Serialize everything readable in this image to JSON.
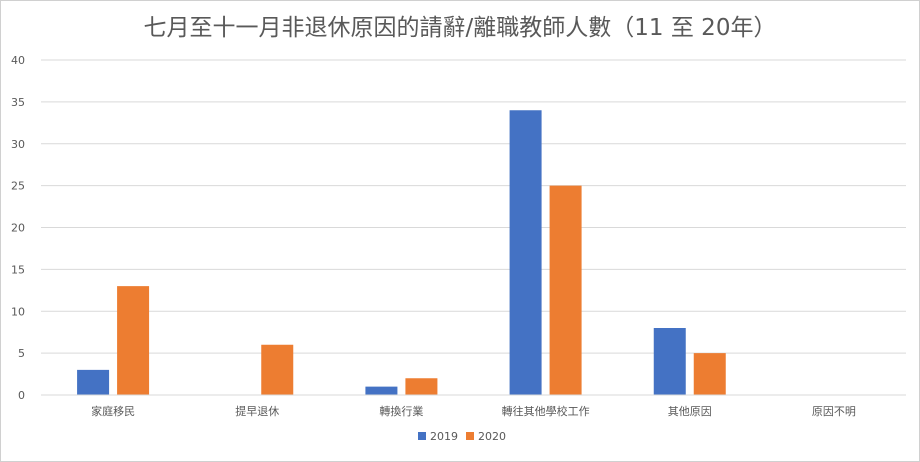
{
  "chart_data": {
    "type": "bar",
    "title": "七月至十一月非退休原因的請辭/離職教師人數（11 至 20年）",
    "xlabel": "",
    "ylabel": "",
    "ylim": [
      0,
      40
    ],
    "yticks": [
      "0",
      "5",
      "10",
      "15",
      "20",
      "25",
      "30",
      "35",
      "40"
    ],
    "grid": true,
    "legend_position": "bottom",
    "categories": [
      "家庭移民",
      "提早退休",
      "轉換行業",
      "轉往其他學校工作",
      "其他原因",
      "原因不明"
    ],
    "series": [
      {
        "name": "2019",
        "color": "#4472C4",
        "values": [
          3,
          0,
          1,
          34,
          8,
          0
        ]
      },
      {
        "name": "2020",
        "color": "#ED7D31",
        "values": [
          13,
          6,
          2,
          25,
          5,
          0
        ]
      }
    ]
  }
}
